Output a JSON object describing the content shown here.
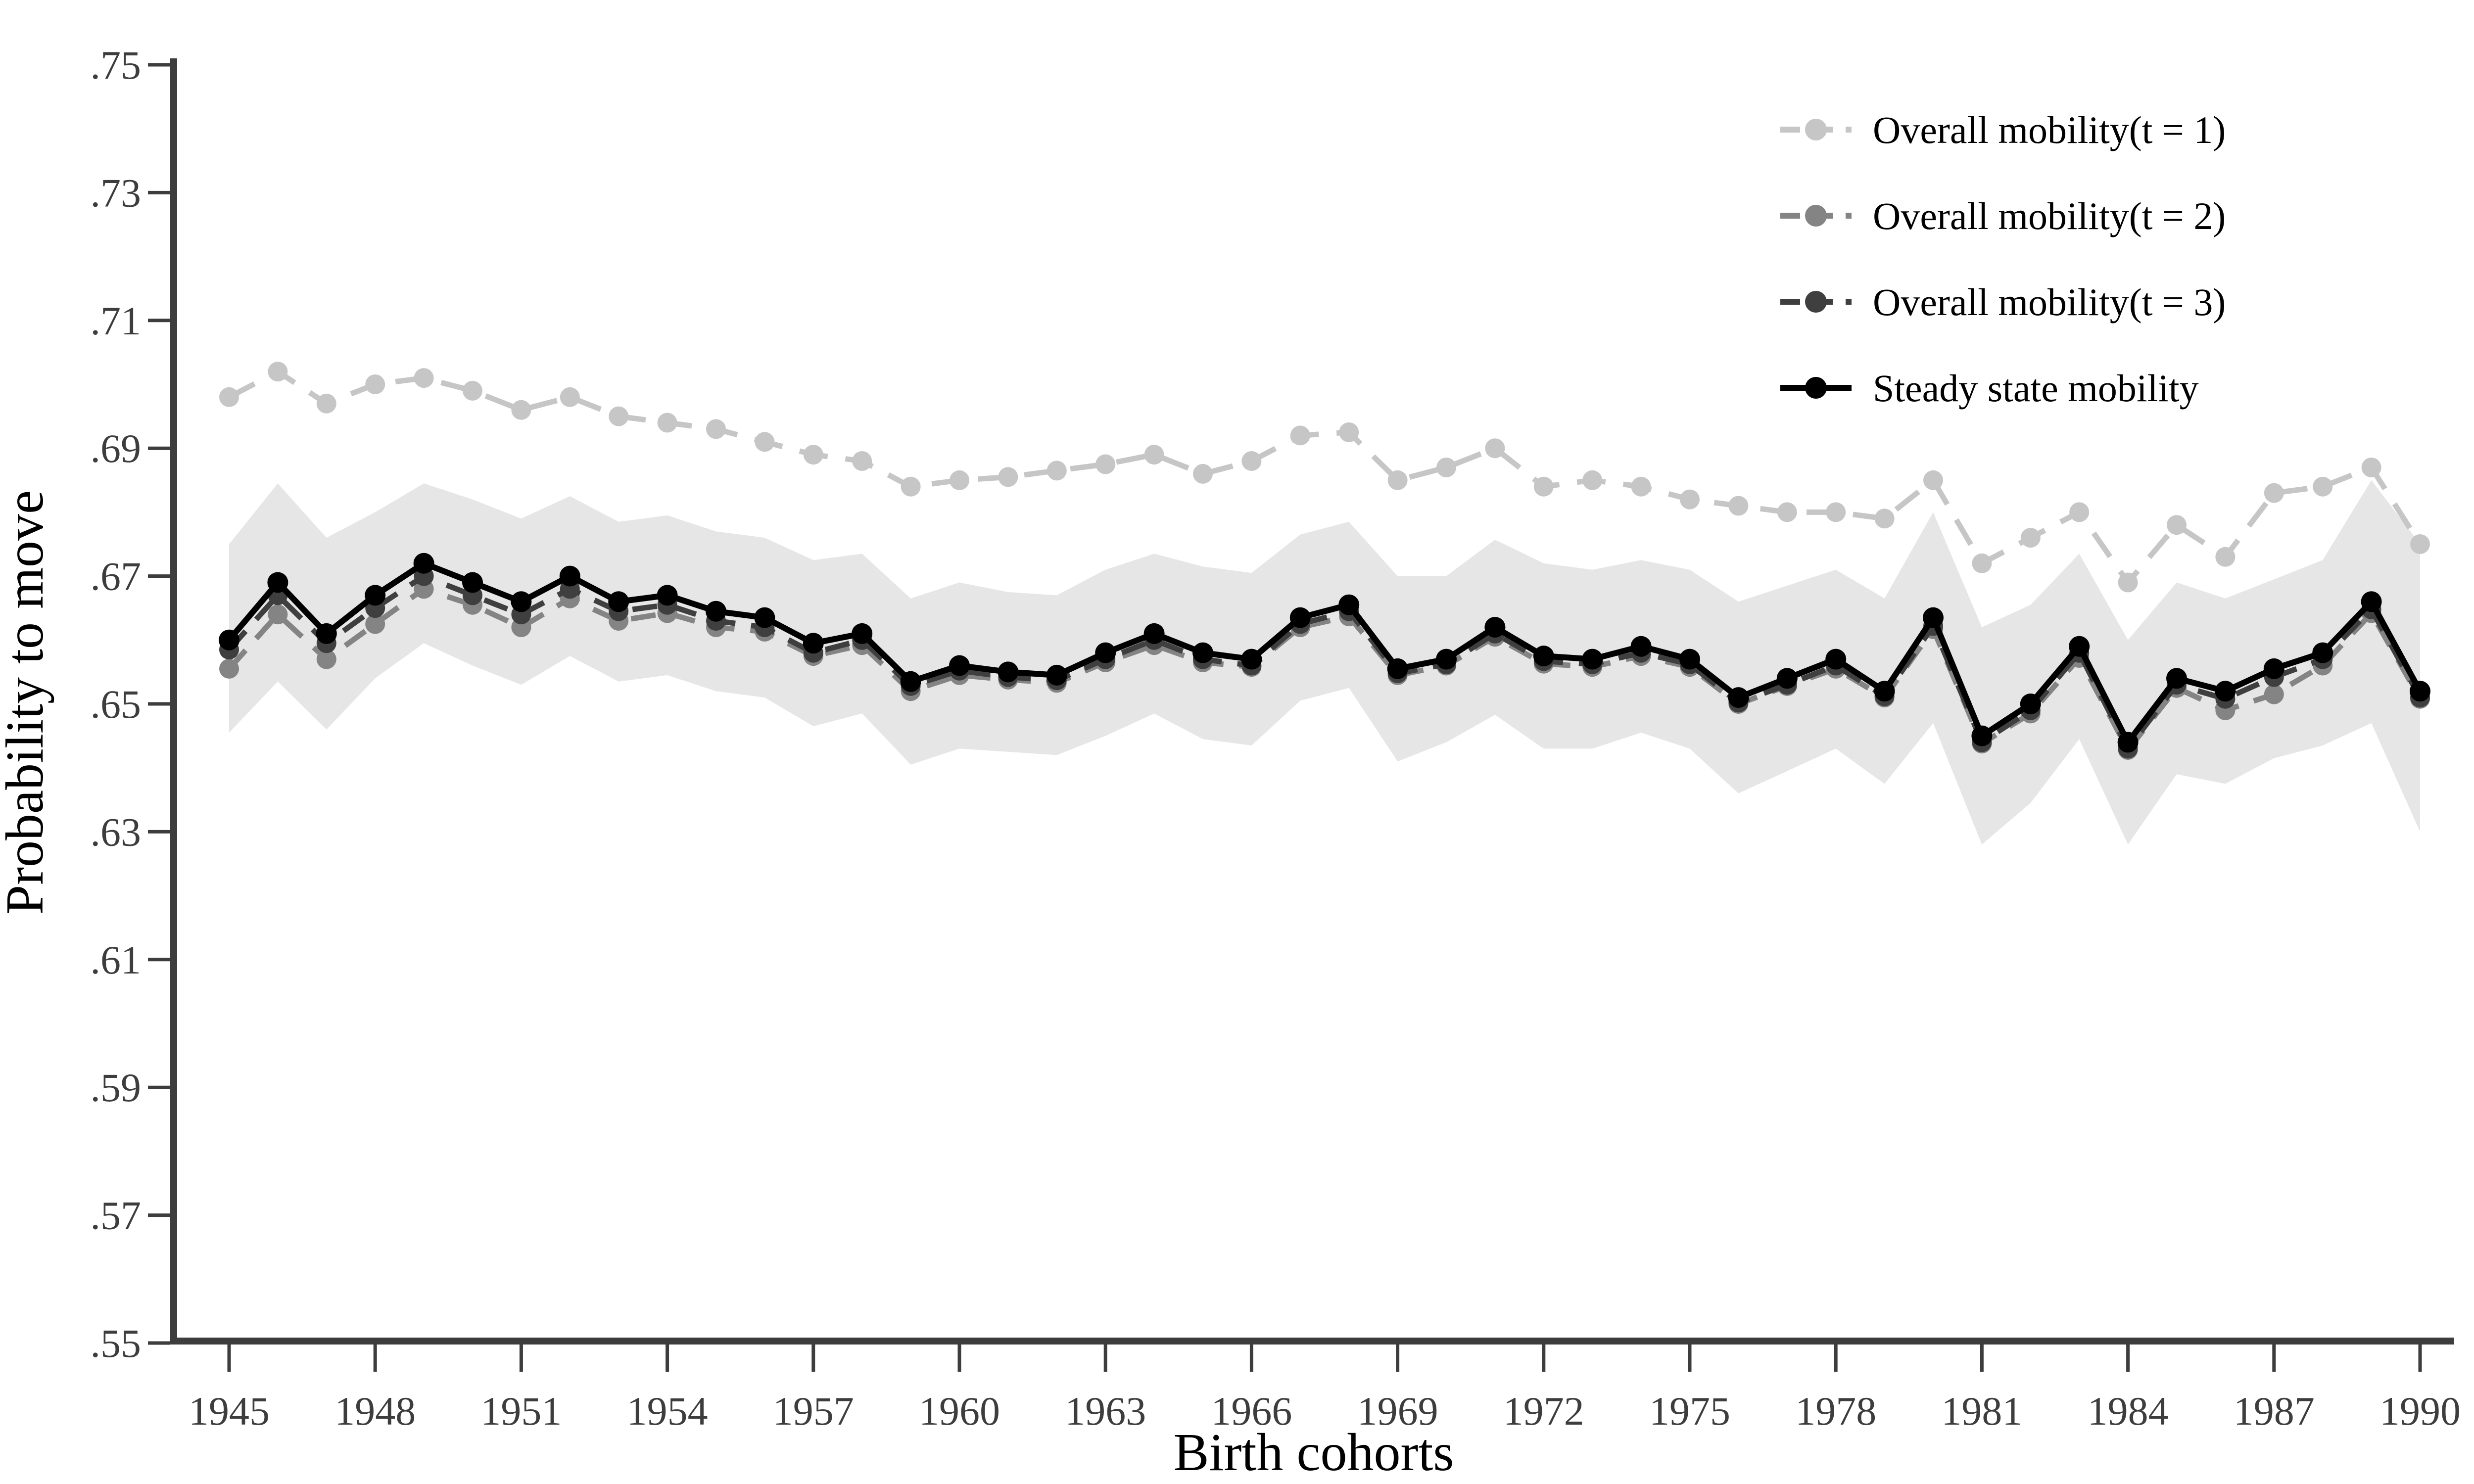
{
  "figure": {
    "background": "#ffffff"
  },
  "chart_data": {
    "type": "line",
    "title": "",
    "xlabel": "Birth cohorts",
    "ylabel": "Probability to move",
    "grid": "off",
    "legend_position": "top-right",
    "xlim": [
      1943.8,
      1991.2
    ],
    "ylim": [
      0.55,
      0.75
    ],
    "x_ticks": [
      1945,
      1948,
      1951,
      1954,
      1957,
      1960,
      1963,
      1966,
      1969,
      1972,
      1975,
      1978,
      1981,
      1984,
      1987,
      1990
    ],
    "y_ticks": [
      {
        "value": 0.75,
        "label": ".75"
      },
      {
        "value": 0.73,
        "label": ".73"
      },
      {
        "value": 0.71,
        "label": ".71"
      },
      {
        "value": 0.69,
        "label": ".69"
      },
      {
        "value": 0.67,
        "label": ".67"
      },
      {
        "value": 0.65,
        "label": ".65"
      },
      {
        "value": 0.63,
        "label": ".63"
      },
      {
        "value": 0.61,
        "label": ".61"
      },
      {
        "value": 0.59,
        "label": ".59"
      },
      {
        "value": 0.57,
        "label": ".57"
      },
      {
        "value": 0.55,
        "label": ".55"
      }
    ],
    "x": [
      1945,
      1946,
      1947,
      1948,
      1949,
      1950,
      1951,
      1952,
      1953,
      1954,
      1955,
      1956,
      1957,
      1958,
      1959,
      1960,
      1961,
      1962,
      1963,
      1964,
      1965,
      1966,
      1967,
      1968,
      1969,
      1970,
      1971,
      1972,
      1973,
      1974,
      1975,
      1976,
      1977,
      1978,
      1979,
      1980,
      1981,
      1982,
      1983,
      1984,
      1985,
      1986,
      1987,
      1988,
      1989,
      1990
    ],
    "band": {
      "name": "confidence-band",
      "color": "#e6e6e6",
      "upper": [
        0.675,
        0.6845,
        0.676,
        0.68,
        0.6845,
        0.682,
        0.679,
        0.6825,
        0.6785,
        0.6795,
        0.677,
        0.676,
        0.6725,
        0.6735,
        0.6665,
        0.669,
        0.6675,
        0.667,
        0.671,
        0.6735,
        0.6715,
        0.6705,
        0.6765,
        0.6785,
        0.67,
        0.67,
        0.6757,
        0.672,
        0.671,
        0.6725,
        0.671,
        0.666,
        0.6685,
        0.671,
        0.6665,
        0.68,
        0.662,
        0.6655,
        0.6735,
        0.66,
        0.669,
        0.6665,
        0.6695,
        0.6725,
        0.685,
        0.675
      ],
      "lower": [
        0.6455,
        0.6535,
        0.646,
        0.654,
        0.6595,
        0.656,
        0.653,
        0.6575,
        0.6535,
        0.6545,
        0.652,
        0.651,
        0.6465,
        0.6485,
        0.6405,
        0.643,
        0.6425,
        0.642,
        0.645,
        0.6485,
        0.6445,
        0.6435,
        0.6505,
        0.6525,
        0.641,
        0.644,
        0.6483,
        0.643,
        0.643,
        0.6455,
        0.643,
        0.636,
        0.6395,
        0.643,
        0.6375,
        0.647,
        0.628,
        0.6345,
        0.6445,
        0.628,
        0.639,
        0.6375,
        0.6415,
        0.6435,
        0.647,
        0.63
      ]
    },
    "series": [
      {
        "name": "Overall mobility(t = 1)",
        "color": "#c6c6c6",
        "line_style": "dashed",
        "marker": "circle",
        "values": [
          0.698,
          0.702,
          0.697,
          0.7,
          0.701,
          0.699,
          0.696,
          0.698,
          0.695,
          0.694,
          0.693,
          0.691,
          0.689,
          0.688,
          0.684,
          0.685,
          0.6855,
          0.6865,
          0.6875,
          0.689,
          0.686,
          0.688,
          0.692,
          0.6925,
          0.685,
          0.687,
          0.69,
          0.684,
          0.685,
          0.684,
          0.682,
          0.681,
          0.68,
          0.68,
          0.679,
          0.685,
          0.672,
          0.676,
          0.68,
          0.669,
          0.678,
          0.673,
          0.683,
          0.684,
          0.687,
          0.675
        ]
      },
      {
        "name": "Overall mobility(t = 2)",
        "color": "#848484",
        "line_style": "dashed",
        "marker": "circle",
        "values": [
          0.6555,
          0.664,
          0.657,
          0.6625,
          0.668,
          0.6655,
          0.662,
          0.6665,
          0.663,
          0.6642,
          0.662,
          0.6613,
          0.6575,
          0.6592,
          0.652,
          0.6545,
          0.6538,
          0.6533,
          0.6565,
          0.6592,
          0.6565,
          0.6558,
          0.662,
          0.6637,
          0.6545,
          0.656,
          0.6605,
          0.6563,
          0.6558,
          0.6575,
          0.6558,
          0.65,
          0.6528,
          0.6555,
          0.651,
          0.6617,
          0.6438,
          0.6485,
          0.6572,
          0.6428,
          0.6525,
          0.649,
          0.6515,
          0.656,
          0.6642,
          0.6508
        ]
      },
      {
        "name": "Overall mobility(t = 3)",
        "color": "#3f3f3f",
        "line_style": "dashed",
        "marker": "circle",
        "values": [
          0.6585,
          0.667,
          0.6595,
          0.665,
          0.67,
          0.667,
          0.664,
          0.668,
          0.6645,
          0.6655,
          0.663,
          0.662,
          0.658,
          0.66,
          0.6528,
          0.6552,
          0.6542,
          0.6537,
          0.657,
          0.66,
          0.657,
          0.656,
          0.6625,
          0.6645,
          0.6548,
          0.6562,
          0.661,
          0.6567,
          0.6562,
          0.658,
          0.6562,
          0.6502,
          0.653,
          0.656,
          0.6512,
          0.6622,
          0.644,
          0.649,
          0.658,
          0.643,
          0.653,
          0.6508,
          0.6542,
          0.657,
          0.6648,
          0.651
        ]
      },
      {
        "name": "Steady state mobility",
        "color": "#000000",
        "line_style": "solid",
        "marker": "circle",
        "values": [
          0.66,
          0.669,
          0.661,
          0.667,
          0.672,
          0.669,
          0.666,
          0.67,
          0.666,
          0.667,
          0.6645,
          0.6635,
          0.6595,
          0.661,
          0.6535,
          0.656,
          0.655,
          0.6545,
          0.658,
          0.661,
          0.658,
          0.657,
          0.6635,
          0.6655,
          0.6555,
          0.657,
          0.662,
          0.6575,
          0.657,
          0.659,
          0.657,
          0.651,
          0.654,
          0.657,
          0.652,
          0.6635,
          0.645,
          0.65,
          0.659,
          0.644,
          0.654,
          0.652,
          0.6555,
          0.658,
          0.666,
          0.652
        ]
      }
    ],
    "axis_color": "#3d3d3d",
    "tick_label_color": "#3d3d3d",
    "text_color": "#000000"
  }
}
